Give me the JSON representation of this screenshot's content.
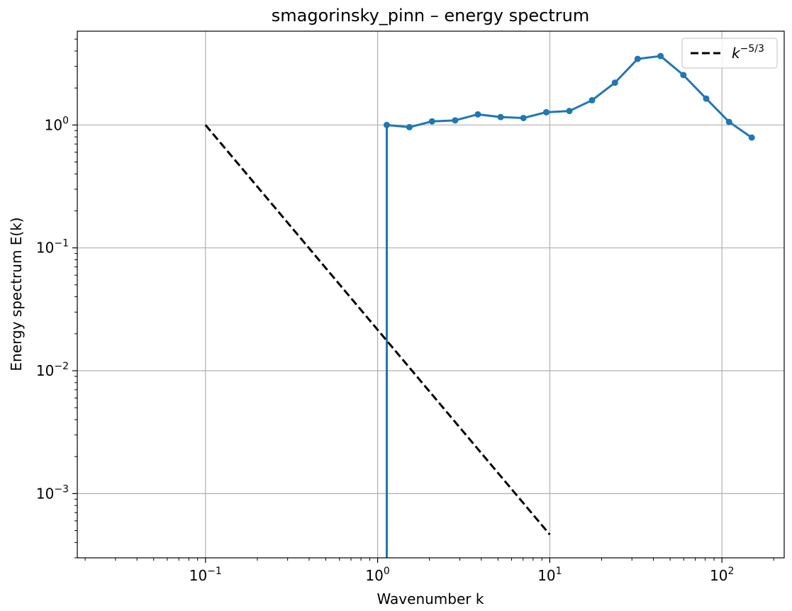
{
  "chart_data": {
    "type": "line",
    "title": "smagorinsky_pinn – energy spectrum",
    "xlabel": "Wavenumber k",
    "ylabel": "Energy spectrum E(k)",
    "xscale": "log",
    "yscale": "log",
    "xlim": [
      0.018,
      230
    ],
    "ylim": [
      0.0003,
      5.8
    ],
    "grid": true,
    "legend_position": "top-right",
    "x_ticks": [
      {
        "base": "10",
        "exp": "−1",
        "value": 0.1
      },
      {
        "base": "10",
        "exp": "0",
        "value": 1
      },
      {
        "base": "10",
        "exp": "1",
        "value": 10
      },
      {
        "base": "10",
        "exp": "2",
        "value": 100
      }
    ],
    "y_ticks": [
      {
        "base": "10",
        "exp": "−3",
        "value": 0.001
      },
      {
        "base": "10",
        "exp": "−2",
        "value": 0.01
      },
      {
        "base": "10",
        "exp": "−1",
        "value": 0.1
      },
      {
        "base": "10",
        "exp": "0",
        "value": 1
      }
    ],
    "series": [
      {
        "name": "",
        "color": "#1f77b4",
        "style": "solid-with-markers",
        "x": [
          1.13,
          1.13,
          1.53,
          2.07,
          2.82,
          3.82,
          5.18,
          7.03,
          9.54,
          13.0,
          17.6,
          23.9,
          32.4,
          44.0,
          59.7,
          81.0,
          110.0,
          149.0
        ],
        "y": [
          0.0003,
          1.0,
          0.96,
          1.07,
          1.09,
          1.22,
          1.16,
          1.14,
          1.27,
          1.3,
          1.59,
          2.21,
          3.45,
          3.64,
          2.55,
          1.64,
          1.06,
          0.79
        ]
      },
      {
        "name": "k^−5/3",
        "color": "#000000",
        "style": "dashed",
        "x": [
          0.1,
          10
        ],
        "y": [
          1.0,
          0.000464
        ]
      }
    ],
    "legend": [
      {
        "base": "k",
        "exp": "−5/3",
        "color": "#000000",
        "style": "dashed"
      }
    ]
  }
}
